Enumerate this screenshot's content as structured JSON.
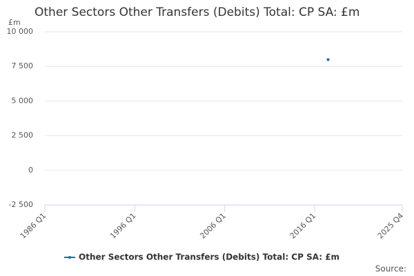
{
  "chart_data": {
    "type": "line",
    "title": "Other Sectors Other Transfers (Debits) Total: CP SA: £m",
    "y_label": "£m",
    "source_label": "Source:",
    "x": [
      "2017 Q3"
    ],
    "series": [
      {
        "name": "Other Sectors Other Transfers (Debits) Total: CP SA: £m",
        "color": "#0075a8",
        "values": [
          7990
        ]
      }
    ],
    "xlim": [
      {
        "value": 1986,
        "label": "1986 Q1"
      },
      {
        "value": 2025.75,
        "label": "2025 Q4"
      }
    ],
    "xticks": [
      {
        "value": 1986,
        "label": "1986 Q1"
      },
      {
        "value": 1996,
        "label": "1996 Q1"
      },
      {
        "value": 2006,
        "label": "2006 Q1"
      },
      {
        "value": 2016,
        "label": "2016 Q1"
      },
      {
        "value": 2025.75,
        "label": "2025 Q4"
      }
    ],
    "ylim": [
      -2500,
      10000
    ],
    "yticks": [
      {
        "value": -2500,
        "label": "-2 500"
      },
      0,
      {
        "value": 2500,
        "label": "2 500"
      },
      {
        "value": 5000,
        "label": "5 000"
      },
      {
        "value": 7500,
        "label": "7 500"
      },
      {
        "value": 10000,
        "label": "10 000"
      }
    ],
    "grid": true
  }
}
